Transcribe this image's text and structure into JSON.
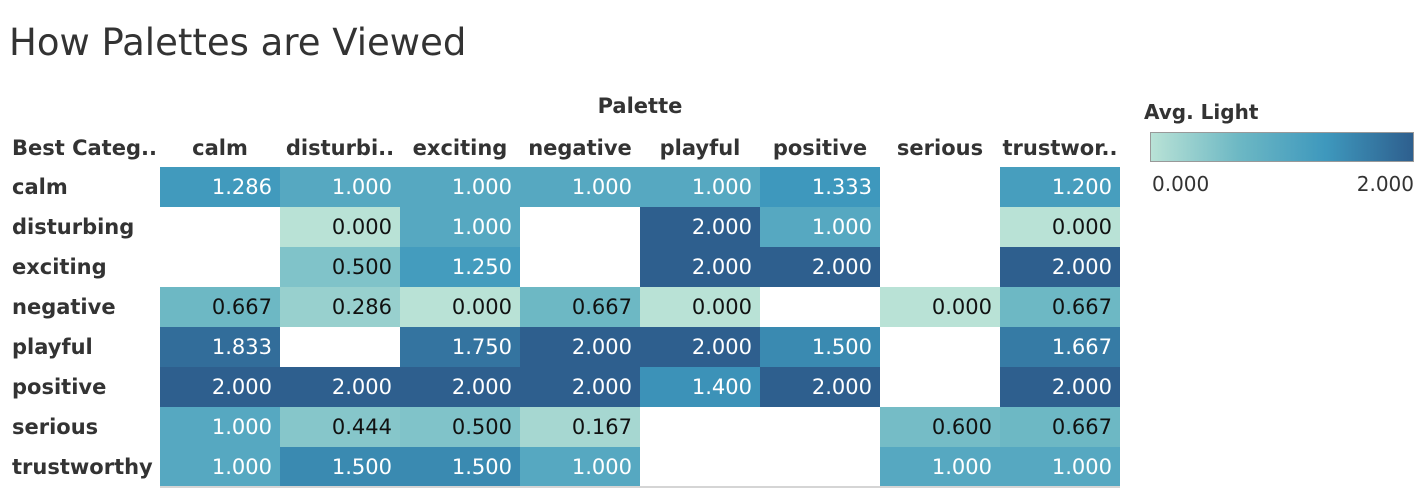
{
  "title": "How Palettes are Viewed",
  "chart_data": {
    "type": "heatmap",
    "title": "How Palettes are Viewed",
    "column_group_label": "Palette",
    "row_header_label": "Best Categ..",
    "columns": [
      "calm",
      "disturbi..",
      "exciting",
      "negative",
      "playful",
      "positive",
      "serious",
      "trustwor.."
    ],
    "rows": [
      "calm",
      "disturbing",
      "exciting",
      "negative",
      "playful",
      "positive",
      "serious",
      "trustworthy"
    ],
    "values": [
      [
        1.286,
        1.0,
        1.0,
        1.0,
        1.0,
        1.333,
        null,
        1.2
      ],
      [
        null,
        0.0,
        1.0,
        null,
        2.0,
        1.0,
        null,
        0.0
      ],
      [
        null,
        0.5,
        1.25,
        null,
        2.0,
        2.0,
        null,
        2.0
      ],
      [
        0.667,
        0.286,
        0.0,
        0.667,
        0.0,
        null,
        0.0,
        0.667
      ],
      [
        1.833,
        null,
        1.75,
        2.0,
        2.0,
        1.5,
        null,
        1.667
      ],
      [
        2.0,
        2.0,
        2.0,
        2.0,
        1.4,
        2.0,
        null,
        2.0
      ],
      [
        1.0,
        0.444,
        0.5,
        0.167,
        null,
        null,
        0.6,
        0.667
      ],
      [
        1.0,
        1.5,
        1.5,
        1.0,
        null,
        null,
        1.0,
        1.0
      ]
    ],
    "value_format_decimals": 3,
    "legend": {
      "title": "Avg. Light",
      "min_label": "0.000",
      "max_label": "2.000",
      "min": 0,
      "max": 2,
      "placement": "top-right",
      "color_stops": [
        "#b9e2d6",
        "#6db8c4",
        "#3e98bd",
        "#2e5f8e"
      ]
    },
    "grid": false
  }
}
